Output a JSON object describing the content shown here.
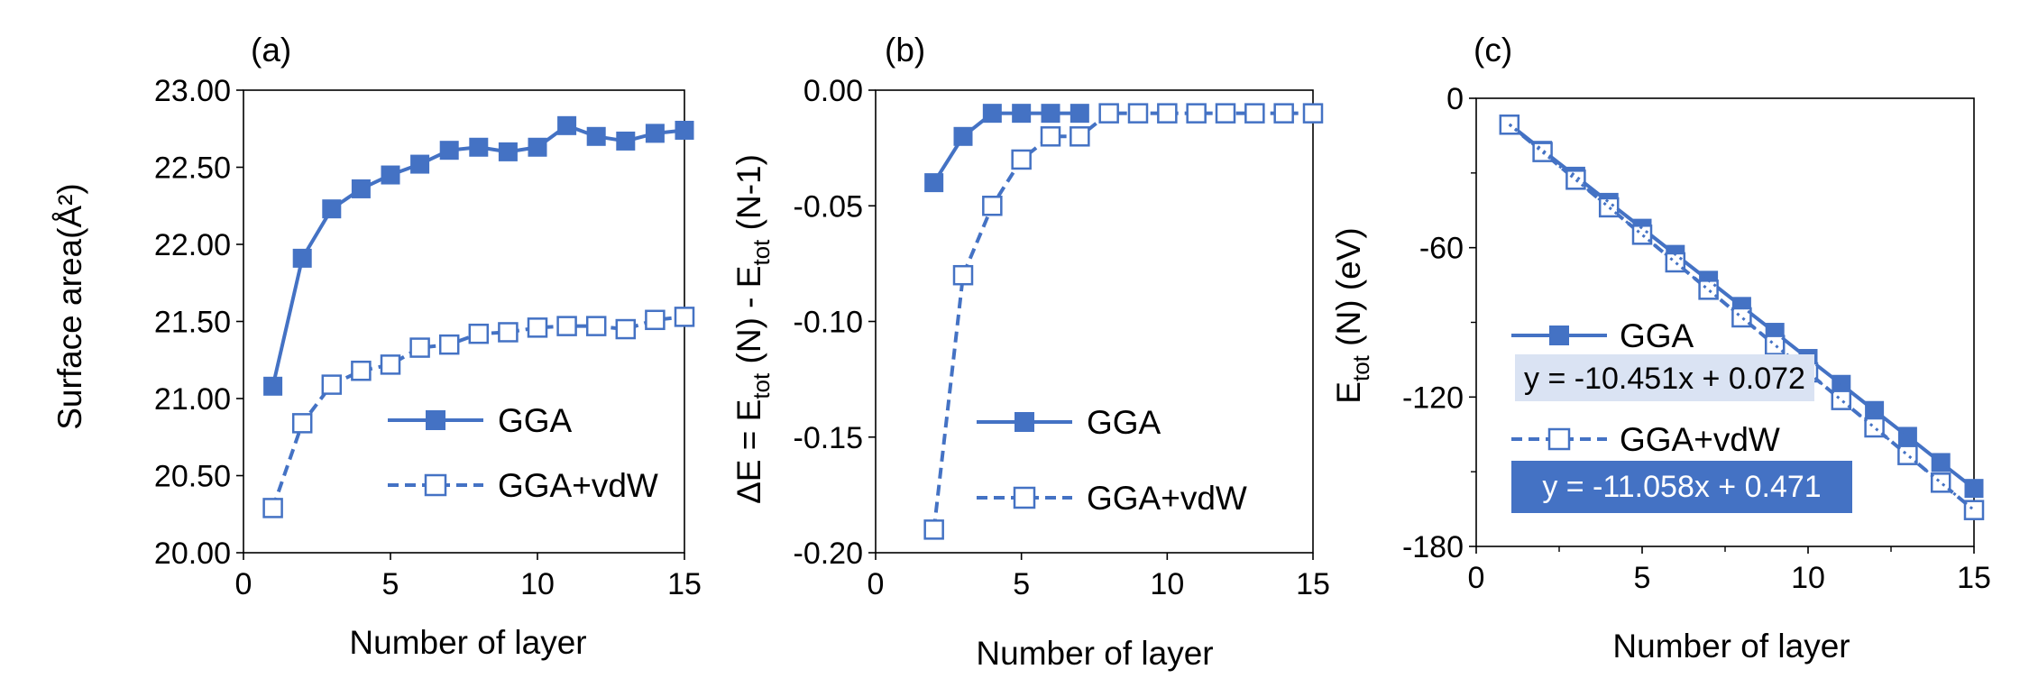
{
  "chart_data": [
    {
      "panel_label": "(a)",
      "type": "line",
      "xlabel": "Number of layer",
      "ylabel": "Surface area(Å²)",
      "xlim": [
        0,
        15
      ],
      "ylim": [
        20.0,
        23.0
      ],
      "xticks": [
        0,
        5,
        10,
        15
      ],
      "yticks": [
        20.0,
        20.5,
        21.0,
        21.5,
        22.0,
        22.5,
        23.0
      ],
      "ytick_labels": [
        "20.00",
        "20.50",
        "21.00",
        "21.50",
        "22.00",
        "22.50",
        "23.00"
      ],
      "legend_position": "lower-right",
      "series": [
        {
          "name": "GGA",
          "style": "solid",
          "marker": "filled-square",
          "x": [
            1,
            2,
            3,
            4,
            5,
            6,
            7,
            8,
            9,
            10,
            11,
            12,
            13,
            14,
            15
          ],
          "y": [
            21.08,
            21.91,
            22.23,
            22.36,
            22.45,
            22.52,
            22.61,
            22.63,
            22.6,
            22.63,
            22.77,
            22.7,
            22.67,
            22.72,
            22.74
          ]
        },
        {
          "name": "GGA+vdW",
          "style": "dashed",
          "marker": "open-square",
          "x": [
            1,
            2,
            3,
            4,
            5,
            6,
            7,
            8,
            9,
            10,
            11,
            12,
            13,
            14,
            15
          ],
          "y": [
            20.29,
            20.84,
            21.09,
            21.18,
            21.22,
            21.33,
            21.35,
            21.42,
            21.43,
            21.46,
            21.47,
            21.47,
            21.45,
            21.51,
            21.53
          ]
        }
      ]
    },
    {
      "panel_label": "(b)",
      "type": "line",
      "xlabel": "Number of layer",
      "ylabel_parts": [
        "ΔE = E",
        "tot",
        " (N) - E",
        "tot",
        " (N-1)"
      ],
      "xlim": [
        0,
        15
      ],
      "ylim": [
        -0.2,
        0.0
      ],
      "xticks": [
        0,
        5,
        10,
        15
      ],
      "yticks": [
        -0.2,
        -0.15,
        -0.1,
        -0.05,
        0.0
      ],
      "ytick_labels": [
        "-0.20",
        "-0.15",
        "-0.10",
        "-0.05",
        "0.00"
      ],
      "legend_position": "lower-right",
      "series": [
        {
          "name": "GGA",
          "style": "solid",
          "marker": "filled-square",
          "x": [
            2,
            3,
            4,
            5,
            6,
            7
          ],
          "y": [
            -0.04,
            -0.02,
            -0.01,
            -0.01,
            -0.01,
            -0.01
          ]
        },
        {
          "name": "GGA+vdW",
          "style": "dashed",
          "marker": "open-square",
          "x": [
            2,
            3,
            4,
            5,
            6,
            7,
            8,
            9,
            10,
            11,
            12,
            13,
            14,
            15
          ],
          "y": [
            -0.19,
            -0.08,
            -0.05,
            -0.03,
            -0.02,
            -0.02,
            -0.01,
            -0.01,
            -0.01,
            -0.01,
            -0.01,
            -0.01,
            -0.01,
            -0.01
          ]
        }
      ]
    },
    {
      "panel_label": "(c)",
      "type": "line",
      "xlabel": "Number of layer",
      "ylabel_parts": [
        "E",
        "tot",
        " (N) (eV)"
      ],
      "xlim": [
        0,
        15
      ],
      "ylim": [
        -180,
        0
      ],
      "xticks": [
        0,
        5,
        10,
        15
      ],
      "yticks": [
        -180,
        -120,
        -60,
        0
      ],
      "ytick_labels": [
        "-180",
        "-120",
        "-60",
        "0"
      ],
      "legend_position": "left",
      "trendline_equations": [
        "y = -10.451x + 0.072",
        "y = -11.058x + 0.471"
      ],
      "series": [
        {
          "name": "GGA",
          "style": "solid",
          "marker": "filled-square",
          "x": [
            1,
            2,
            3,
            4,
            5,
            6,
            7,
            8,
            9,
            10,
            11,
            12,
            13,
            14,
            15
          ],
          "y": [
            -10.4,
            -20.9,
            -31.3,
            -41.8,
            -52.2,
            -62.7,
            -73.1,
            -83.6,
            -94.0,
            -104.5,
            -114.9,
            -125.4,
            -135.8,
            -146.3,
            -156.7
          ]
        },
        {
          "name": "GGA+vdW",
          "style": "dashed",
          "marker": "open-square",
          "x": [
            1,
            2,
            3,
            4,
            5,
            6,
            7,
            8,
            9,
            10,
            11,
            12,
            13,
            14,
            15
          ],
          "y": [
            -10.6,
            -21.6,
            -32.7,
            -43.8,
            -54.8,
            -65.9,
            -76.9,
            -88.0,
            -99.1,
            -110.1,
            -121.2,
            -132.2,
            -143.3,
            -154.4,
            -165.4
          ]
        }
      ]
    }
  ],
  "colors": {
    "series": "#4472C4",
    "eq1_bg": "#DAE3F3",
    "eq1_text": "#4472C4",
    "eq2_bg": "#4472C4",
    "eq2_text": "#FFFFFF"
  }
}
